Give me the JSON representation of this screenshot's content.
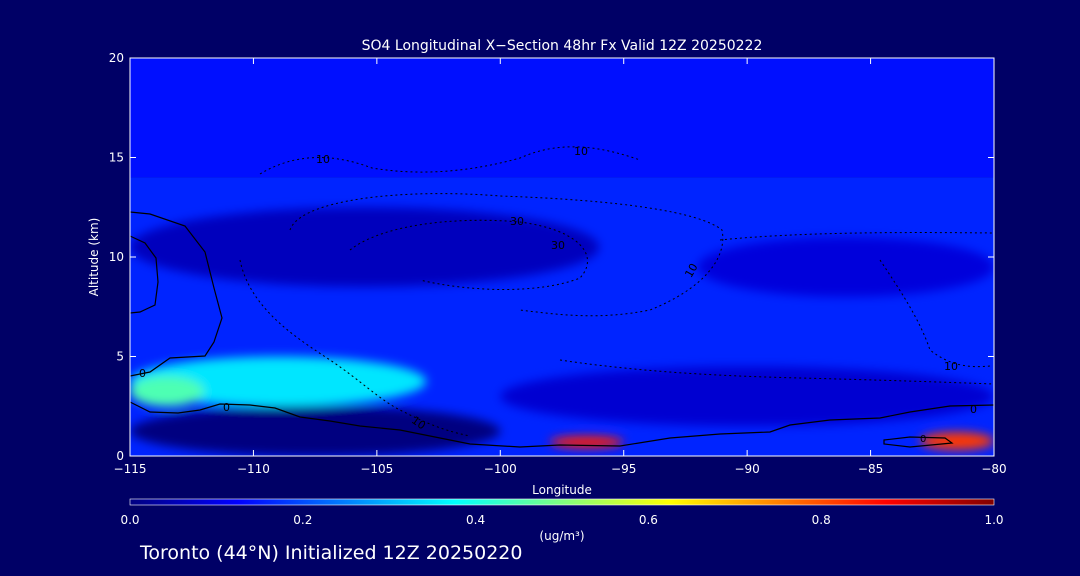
{
  "chart_data": {
    "type": "heatmap",
    "title": "SO4 Longitudinal X−Section 48hr  Fx Valid 12Z 20250222",
    "xlabel": "Longitude",
    "ylabel": "Altitude (km)",
    "xlim": [
      -115,
      -80
    ],
    "ylim": [
      0,
      20
    ],
    "x_ticks": [
      -115,
      -110,
      -105,
      -100,
      -95,
      -90,
      -85,
      -80
    ],
    "x_tick_labels": [
      "−115",
      "−110",
      "−105",
      "−100",
      "−95",
      "−90",
      "−85",
      "−80"
    ],
    "y_ticks": [
      0,
      5,
      10,
      15,
      20
    ],
    "y_tick_labels": [
      "0",
      "5",
      "10",
      "15",
      "20"
    ],
    "colorbar": {
      "label": "(ug/m³)",
      "range": [
        0.0,
        1.0
      ],
      "ticks": [
        0.0,
        0.2,
        0.4,
        0.6,
        0.8,
        1.0
      ],
      "tick_labels": [
        "0.0",
        "0.2",
        "0.4",
        "0.6",
        "0.8",
        "1.0"
      ],
      "colors": [
        "#000080",
        "#0000ff",
        "#0080ff",
        "#00ffff",
        "#80ff80",
        "#ffff00",
        "#ff8000",
        "#ff0000",
        "#800000"
      ]
    },
    "field_regions": [
      {
        "name": "upper-background",
        "lon": [
          -115,
          -80
        ],
        "alt": [
          14,
          20
        ],
        "value": 0.14
      },
      {
        "name": "mid-background",
        "lon": [
          -115,
          -80
        ],
        "alt": [
          3,
          14
        ],
        "value": 0.16
      },
      {
        "name": "upper-trough",
        "lon": [
          -115,
          -96
        ],
        "alt": [
          8.5,
          12.5
        ],
        "value": 0.06
      },
      {
        "name": "east-trough",
        "lon": [
          -92,
          -80
        ],
        "alt": [
          8,
          11
        ],
        "value": 0.09
      },
      {
        "name": "lower-trough",
        "lon": [
          -100,
          -80
        ],
        "alt": [
          1.5,
          4.5
        ],
        "value": 0.08
      },
      {
        "name": "western-low-plume",
        "lon": [
          -115,
          -103
        ],
        "alt": [
          2.5,
          5
        ],
        "value": 0.35
      },
      {
        "name": "western-core",
        "lon": [
          -115,
          -112
        ],
        "alt": [
          2.5,
          4
        ],
        "value": 0.45
      },
      {
        "name": "surface-max-central",
        "lon": [
          -98,
          -95
        ],
        "alt": [
          0.4,
          1.0
        ],
        "value": 0.85
      },
      {
        "name": "surface-max-east",
        "lon": [
          -83,
          -80
        ],
        "alt": [
          0.3,
          1.2
        ],
        "value": 0.82
      },
      {
        "name": "terrain",
        "lon": [
          -115,
          -100
        ],
        "alt": [
          0,
          2.5
        ],
        "value": 0.0
      }
    ],
    "contours": {
      "solid": {
        "level": "0"
      },
      "dotted": [
        {
          "level": "10"
        },
        {
          "level": "10"
        },
        {
          "level": "30"
        },
        {
          "level": "30"
        },
        {
          "level": "10"
        },
        {
          "level": "10"
        },
        {
          "level": "10"
        }
      ]
    }
  },
  "footer": {
    "text": "Toronto (44°N) Initialized 12Z 20250220"
  }
}
